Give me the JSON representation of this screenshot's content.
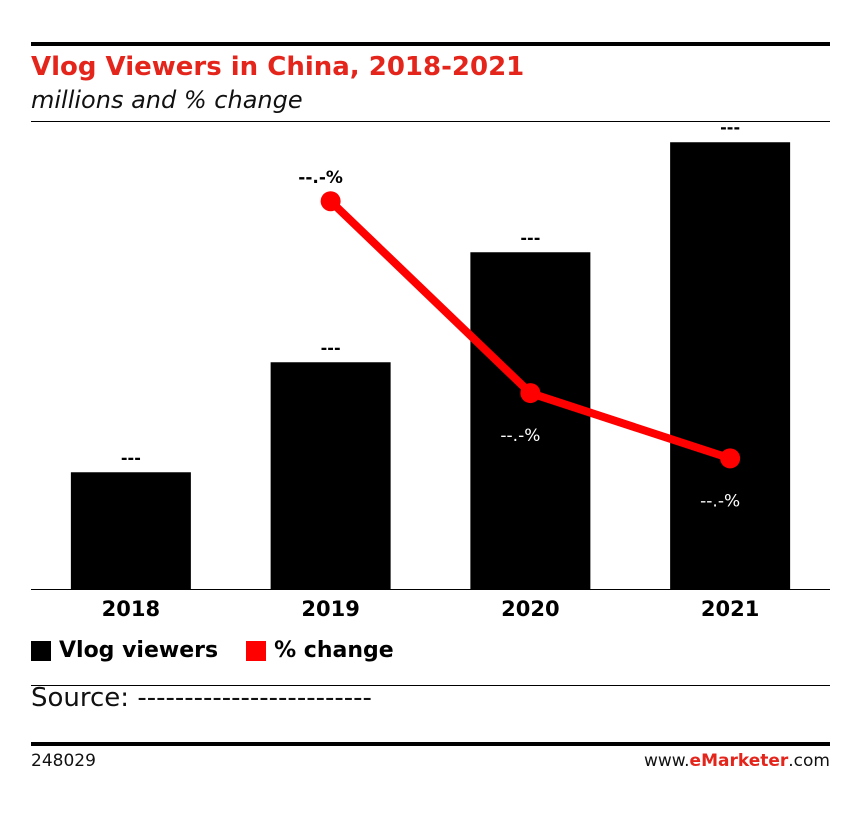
{
  "header": {
    "title": "Vlog Viewers in China, 2018-2021",
    "subtitle": "millions and % change"
  },
  "chart_data": {
    "type": "bar",
    "categories": [
      "2018",
      "2019",
      "2020",
      "2021"
    ],
    "series": [
      {
        "name": "Vlog viewers",
        "type": "bar",
        "color": "#000000",
        "values": [
          104,
          202,
          300,
          398
        ],
        "labels": [
          "---",
          "---",
          "---",
          "---"
        ]
      },
      {
        "name": "% change",
        "type": "line",
        "color": "#ff0000",
        "values": [
          null,
          95,
          48,
          32
        ],
        "labels": [
          "",
          "--.-%",
          "--.-%",
          "--.-%"
        ]
      }
    ],
    "ylim": [
      0,
      400
    ],
    "y2lim": [
      0,
      110
    ],
    "grid": false,
    "legend": "bottom-left"
  },
  "legend": {
    "bar_label": "Vlog viewers",
    "line_label": "% change"
  },
  "footer": {
    "source": "Source: -------------------------",
    "chart_id": "248029",
    "brand_prefix": "www.",
    "brand_name": "eMarketer",
    "brand_suffix": ".com"
  }
}
